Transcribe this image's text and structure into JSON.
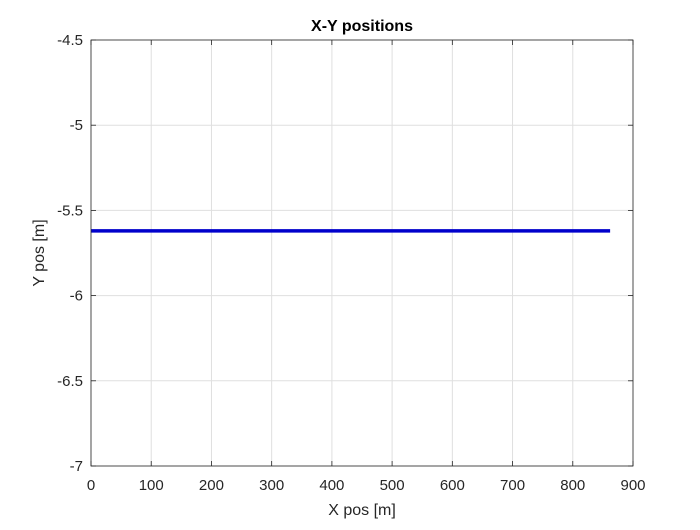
{
  "chart_data": {
    "type": "line",
    "title": "X-Y positions",
    "xlabel": "X pos [m]",
    "ylabel": "Y pos [m]",
    "xlim": [
      0,
      900
    ],
    "ylim": [
      -7,
      -4.5
    ],
    "xticks": [
      0,
      100,
      200,
      300,
      400,
      500,
      600,
      700,
      800,
      900
    ],
    "xtick_labels": [
      "0",
      "100",
      "200",
      "300",
      "400",
      "500",
      "600",
      "700",
      "800",
      "900"
    ],
    "yticks": [
      -4.5,
      -5,
      -5.5,
      -6,
      -6.5,
      -7
    ],
    "ytick_labels": [
      "-4.5",
      "-5",
      "-5.5",
      "-6",
      "-6.5",
      "-7"
    ],
    "grid": true,
    "series": [
      {
        "color": "#0000cc",
        "x": [
          0,
          862
        ],
        "y": [
          -5.62,
          -5.62
        ]
      }
    ]
  }
}
